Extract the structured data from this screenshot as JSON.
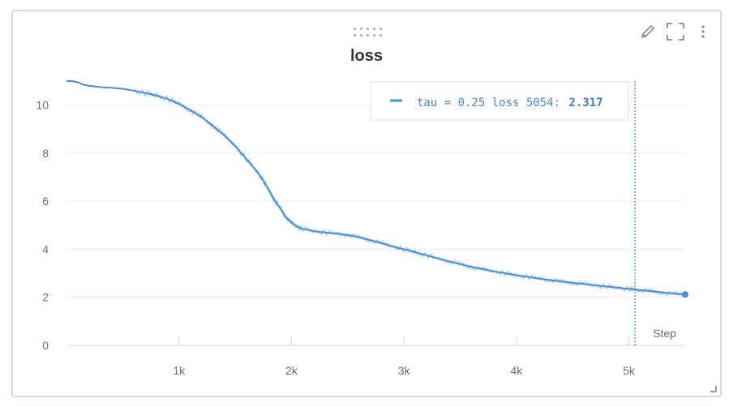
{
  "panel": {
    "title": "loss",
    "toolbar": {
      "edit_icon": "pencil-icon",
      "fullscreen_icon": "expand-icon",
      "menu_icon": "kebab-menu-icon"
    }
  },
  "legend": {
    "label": "tau = 0.25 loss 5054:",
    "value": "2.317",
    "color": "#4a8fd6"
  },
  "chart_data": {
    "type": "line",
    "title": "loss",
    "xlabel": "Step",
    "ylabel": "",
    "xlim": [
      0,
      5500
    ],
    "ylim": [
      0,
      11
    ],
    "grid": true,
    "legend_placement": "top-right",
    "hover_step": 5054,
    "x_ticks": [
      {
        "value": 1000,
        "label": "1k"
      },
      {
        "value": 2000,
        "label": "2k"
      },
      {
        "value": 3000,
        "label": "3k"
      },
      {
        "value": 4000,
        "label": "4k"
      },
      {
        "value": 5000,
        "label": "5k"
      }
    ],
    "y_ticks": [
      {
        "value": 0,
        "label": "0"
      },
      {
        "value": 2,
        "label": "2"
      },
      {
        "value": 4,
        "label": "4"
      },
      {
        "value": 6,
        "label": "6"
      },
      {
        "value": 8,
        "label": "8"
      },
      {
        "value": 10,
        "label": "10"
      }
    ],
    "series": [
      {
        "name": "tau = 0.25 loss",
        "color": "#4a8fd6",
        "x": [
          0,
          50,
          100,
          150,
          200,
          300,
          400,
          500,
          600,
          700,
          800,
          900,
          1000,
          1100,
          1200,
          1300,
          1400,
          1500,
          1600,
          1700,
          1750,
          1800,
          1850,
          1900,
          1950,
          2000,
          2050,
          2100,
          2200,
          2300,
          2400,
          2500,
          2600,
          2700,
          2800,
          2900,
          3000,
          3100,
          3200,
          3300,
          3400,
          3500,
          3600,
          3700,
          3800,
          3900,
          4000,
          4100,
          4200,
          4300,
          4400,
          4500,
          4600,
          4700,
          4800,
          4900,
          5000,
          5054,
          5100,
          5200,
          5300,
          5400,
          5500
        ],
        "y": [
          11.0,
          11.0,
          10.95,
          10.85,
          10.8,
          10.75,
          10.72,
          10.68,
          10.6,
          10.5,
          10.4,
          10.25,
          10.05,
          9.8,
          9.5,
          9.15,
          8.75,
          8.3,
          7.75,
          7.2,
          6.85,
          6.45,
          6.05,
          5.7,
          5.35,
          5.1,
          4.95,
          4.85,
          4.75,
          4.7,
          4.65,
          4.6,
          4.5,
          4.38,
          4.25,
          4.12,
          4.0,
          3.88,
          3.75,
          3.62,
          3.5,
          3.38,
          3.27,
          3.17,
          3.08,
          3.0,
          2.92,
          2.85,
          2.78,
          2.72,
          2.66,
          2.6,
          2.55,
          2.5,
          2.45,
          2.4,
          2.35,
          2.317,
          2.3,
          2.25,
          2.2,
          2.15,
          2.12
        ]
      }
    ]
  }
}
